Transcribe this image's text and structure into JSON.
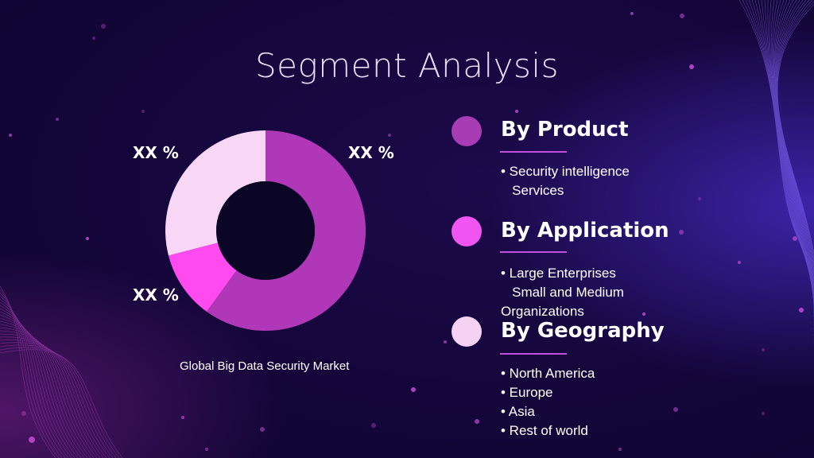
{
  "slide": {
    "title": "Segment Analysis"
  },
  "chart_data": {
    "type": "pie",
    "title": "",
    "caption": "Global Big Data Security Market",
    "slices": [
      {
        "label": "XX %",
        "value": 60,
        "color": "#b038b8"
      },
      {
        "label": "XX %",
        "value": 11,
        "color": "#ff4aef"
      },
      {
        "label": "XX %",
        "value": 29,
        "color": "#f8d6f6"
      }
    ]
  },
  "segments": [
    {
      "title": "By Product",
      "dot_color": "#a83cb4",
      "items": [
        "• Security intelligence",
        "   Services"
      ]
    },
    {
      "title": "By Application",
      "dot_color": "#f055f2",
      "items": [
        "• Large Enterprises",
        "   Small and Medium",
        "Organizations"
      ]
    },
    {
      "title": "By Geography",
      "dot_color": "#f5d2f4",
      "items": [
        "• North America",
        "• Europe",
        "• Asia",
        "• Rest of world"
      ]
    }
  ],
  "colors": {
    "background": "#14063a",
    "accent_rule": "#c14fe0"
  }
}
